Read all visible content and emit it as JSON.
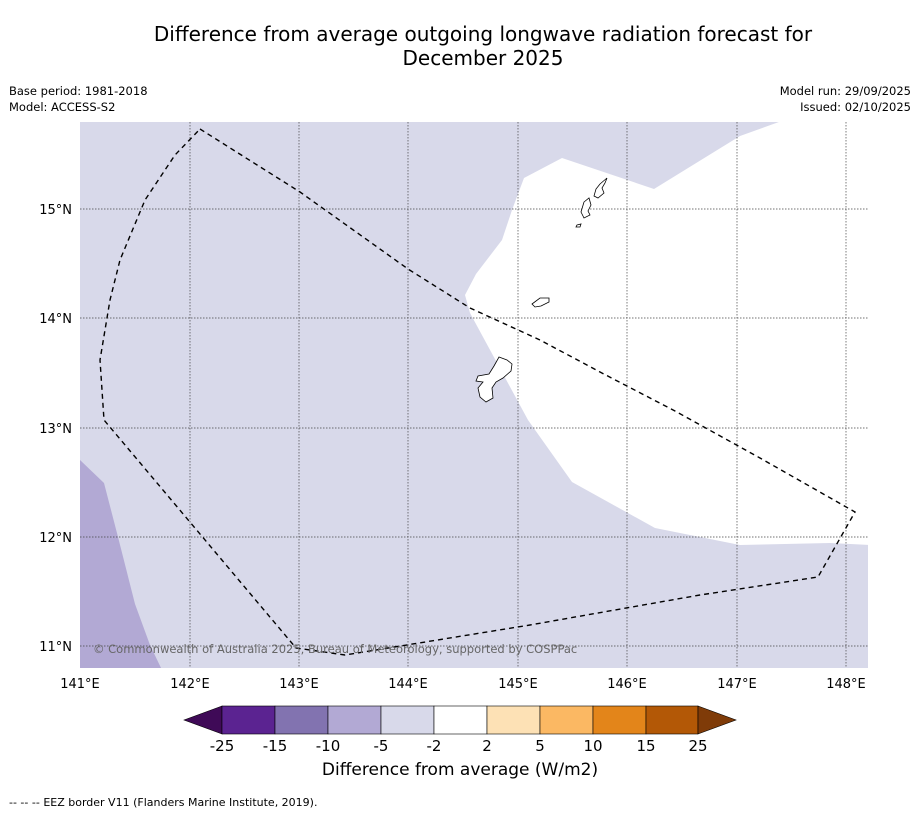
{
  "header": {
    "title_line1": "Difference from average outgoing longwave radiation forecast for",
    "title_line2": "December 2025",
    "base_period": "Base period: 1981-2018",
    "model": "Model: ACCESS-S2",
    "model_run": "Model run: 29/09/2025",
    "issued": "Issued: 02/10/2025"
  },
  "map": {
    "lat_labels": [
      "15°N",
      "14°N",
      "13°N",
      "12°N",
      "11°N"
    ],
    "lon_labels": [
      "141°E",
      "142°E",
      "143°E",
      "144°E",
      "145°E",
      "146°E",
      "147°E",
      "148°E"
    ],
    "copyright": "© Commonwealth of Australia 2025, Bureau of Meteorology, supported by COSPPac",
    "islands": [
      "guam-island",
      "rota-island",
      "tinian-island",
      "saipan-island"
    ]
  },
  "colorbar": {
    "labels": [
      "-25",
      "-15",
      "-10",
      "-5",
      "-2",
      "2",
      "5",
      "10",
      "15",
      "25"
    ],
    "colors": [
      "#3f0a57",
      "#5b2391",
      "#8273b0",
      "#b2a9d4",
      "#d8d9ea",
      "#ffffff",
      "#fde1b5",
      "#fbb863",
      "#e3851a",
      "#b35806",
      "#7f3b08"
    ],
    "title": "Difference from average (W/m2)"
  },
  "footer": {
    "legend_symbol": "-- -- --",
    "legend_text": "EEZ border V11 (Flanders Marine Institute, 2019)."
  }
}
